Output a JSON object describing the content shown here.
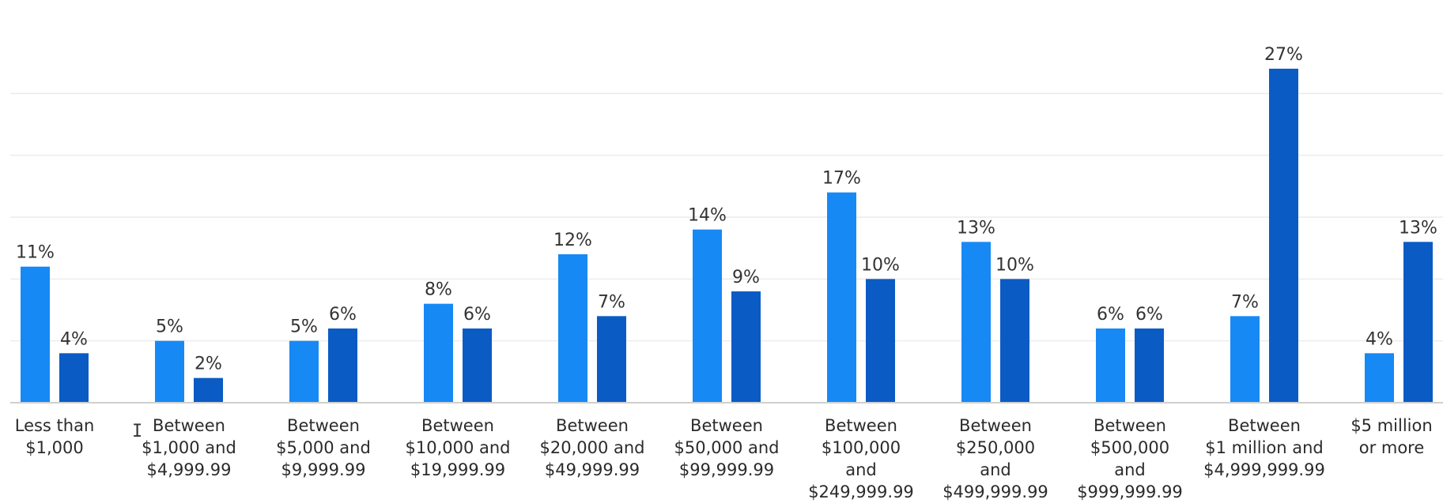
{
  "chart_data": {
    "type": "bar",
    "categories": [
      [
        "Less than",
        "$1,000"
      ],
      [
        "Between",
        "$1,000 and",
        "$4,999.99"
      ],
      [
        "Between",
        "$5,000 and",
        "$9,999.99"
      ],
      [
        "Between",
        "$10,000 and",
        "$19,999.99"
      ],
      [
        "Between",
        "$20,000 and",
        "$49,999.99"
      ],
      [
        "Between",
        "$50,000 and",
        "$99,999.99"
      ],
      [
        "Between",
        "$100,000",
        "and",
        "$249,999.99"
      ],
      [
        "Between",
        "$250,000",
        "and",
        "$499,999.99"
      ],
      [
        "Between",
        "$500,000",
        "and",
        "$999,999.99"
      ],
      [
        "Between",
        "$1 million and",
        "$4,999,999.99"
      ],
      [
        "$5 million",
        "or more"
      ]
    ],
    "series": [
      {
        "values": [
          11,
          5,
          5,
          8,
          12,
          14,
          17,
          13,
          6,
          7,
          4
        ],
        "labels": [
          "11%",
          "5%",
          "5%",
          "8%",
          "12%",
          "14%",
          "17%",
          "13%",
          "6%",
          "7%",
          "4%"
        ],
        "color": "#1789f5"
      },
      {
        "values": [
          4,
          2,
          6,
          6,
          7,
          9,
          10,
          10,
          6,
          27,
          13
        ],
        "labels": [
          "4%",
          "2%",
          "6%",
          "6%",
          "7%",
          "9%",
          "10%",
          "10%",
          "6%",
          "27%",
          "13%"
        ],
        "color": "#0b5bc4"
      }
    ],
    "ylim": [
      0,
      30
    ],
    "grid": true,
    "legend": "none",
    "cursor_glyph": "I"
  }
}
